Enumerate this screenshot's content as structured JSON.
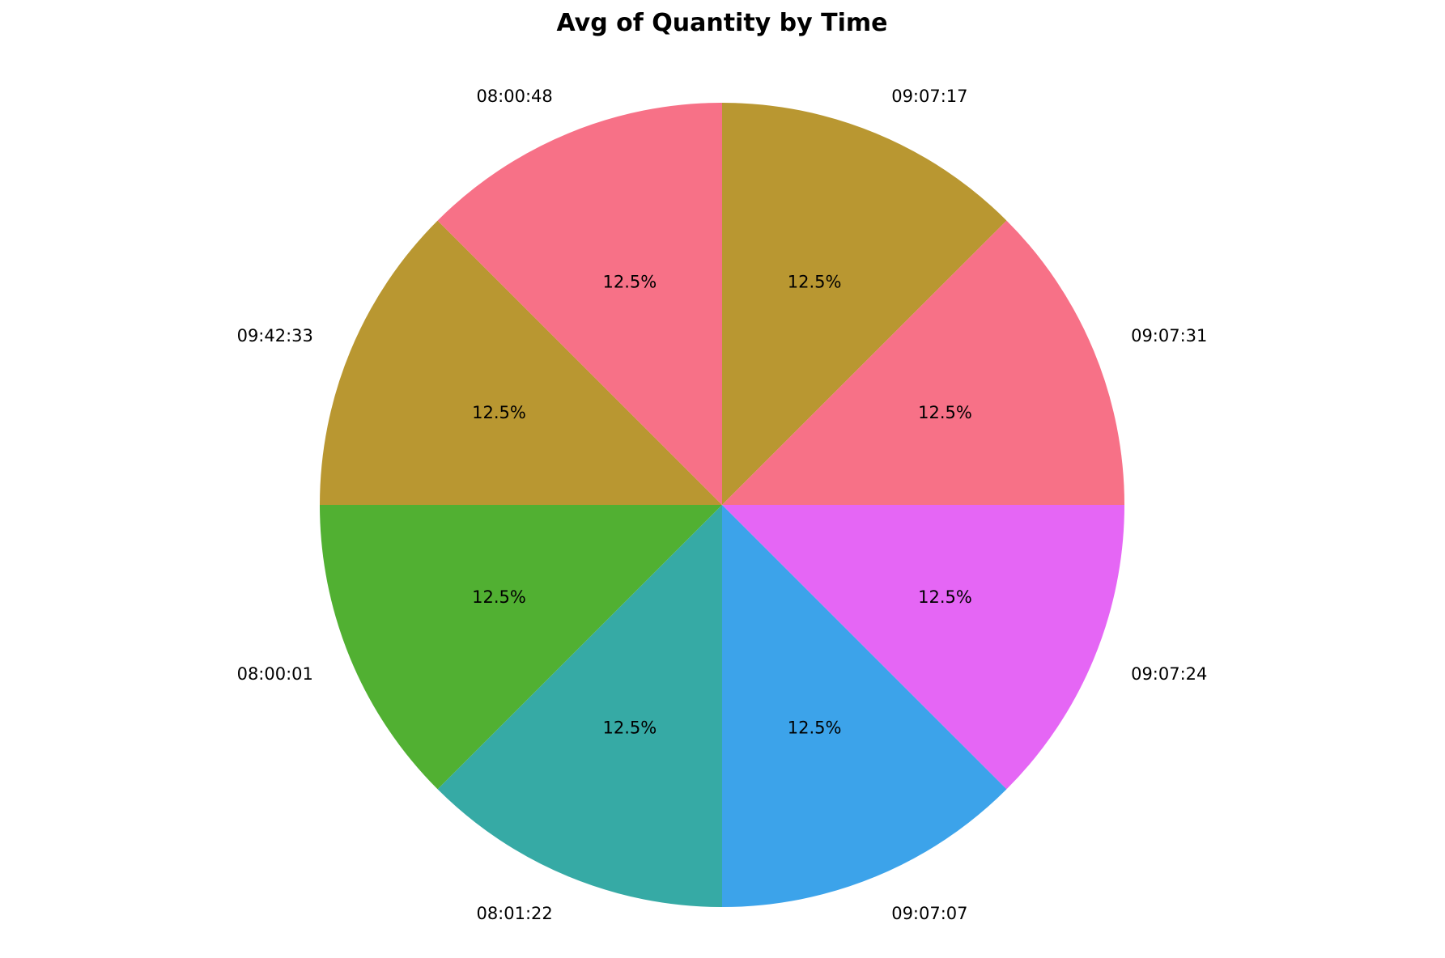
{
  "chart_data": {
    "type": "pie",
    "title": "Avg of Quantity by Time",
    "start_angle_deg": 90,
    "direction": "clockwise",
    "slices": [
      {
        "label": "09:07:17",
        "value": 12.5,
        "pct_label": "12.5%",
        "color": "#b99731"
      },
      {
        "label": "09:07:31",
        "value": 12.5,
        "pct_label": "12.5%",
        "color": "#f77187"
      },
      {
        "label": "09:07:24",
        "value": 12.5,
        "pct_label": "12.5%",
        "color": "#e566f5"
      },
      {
        "label": "09:07:07",
        "value": 12.5,
        "pct_label": "12.5%",
        "color": "#3ca3ea"
      },
      {
        "label": "08:01:22",
        "value": 12.5,
        "pct_label": "12.5%",
        "color": "#36aaa5"
      },
      {
        "label": "08:00:01",
        "value": 12.5,
        "pct_label": "12.5%",
        "color": "#51b032"
      },
      {
        "label": "09:42:33",
        "value": 12.5,
        "pct_label": "12.5%",
        "color": "#b99731"
      },
      {
        "label": "08:00:48",
        "value": 12.5,
        "pct_label": "12.5%",
        "color": "#f77187"
      }
    ]
  }
}
